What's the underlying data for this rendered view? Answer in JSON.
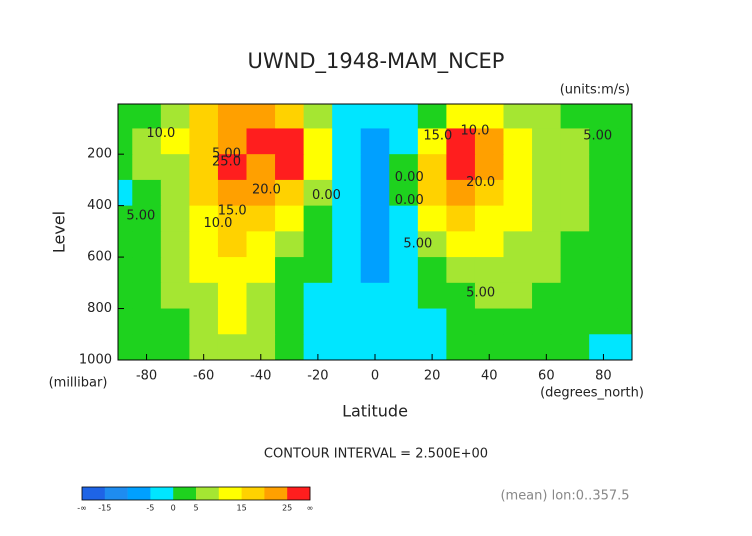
{
  "chart_data": {
    "type": "contour",
    "title": "UWND_1948-MAM_NCEP",
    "subtitle": "(units:m/s)",
    "x_label": "Latitude",
    "x_unit": "(degrees_north)",
    "y_label": "Level",
    "y_unit": "(millibar)",
    "note": "CONTOUR INTERVAL = 2.500E+00",
    "footer": "(mean) lon:0..357.5",
    "xlim": [
      -90,
      90
    ],
    "ylim": [
      1000,
      5
    ],
    "xticks": [
      -80,
      -60,
      -40,
      -20,
      0,
      20,
      40,
      60,
      80
    ],
    "yticks": [
      200,
      400,
      600,
      800,
      1000
    ],
    "x": [
      -90,
      -80,
      -70,
      -60,
      -50,
      -40,
      -30,
      -20,
      -10,
      0,
      10,
      20,
      30,
      40,
      50,
      60,
      70,
      80,
      90
    ],
    "levels": [
      50,
      150,
      250,
      350,
      450,
      550,
      650,
      750,
      850,
      950
    ],
    "z": [
      [
        3,
        4,
        8,
        15,
        22,
        22,
        18,
        8,
        -3,
        -5,
        -3,
        4,
        10,
        10,
        8,
        6,
        4,
        3,
        2
      ],
      [
        3,
        5,
        10,
        17,
        23,
        25,
        27,
        10,
        -3,
        -6,
        -2,
        12,
        27,
        20,
        12,
        8,
        5,
        3,
        2
      ],
      [
        2,
        5,
        9,
        16,
        26,
        24,
        26,
        12,
        -1,
        -6,
        0,
        17,
        26,
        20,
        14,
        9,
        6,
        3,
        2
      ],
      [
        -1,
        4,
        8,
        15,
        22,
        20,
        15,
        6,
        -1,
        -6,
        0,
        15,
        22,
        17,
        12,
        8,
        5,
        3,
        2
      ],
      [
        2,
        4,
        7,
        13,
        18,
        16,
        10,
        3,
        -2,
        -6,
        -1,
        11,
        16,
        14,
        10,
        7,
        5,
        3,
        2
      ],
      [
        2,
        4,
        6,
        11,
        15,
        12,
        6,
        1,
        -2,
        -7,
        -2,
        7,
        11,
        11,
        9,
        6,
        4,
        2,
        1
      ],
      [
        2,
        3,
        6,
        10,
        14,
        10,
        4,
        0,
        -2,
        -6,
        -3,
        3,
        7,
        8,
        7,
        5,
        3,
        2,
        1
      ],
      [
        2,
        3,
        5,
        9,
        12,
        8,
        3,
        -1,
        -3,
        -4,
        -2,
        0,
        4,
        5,
        5,
        4,
        3,
        1,
        1
      ],
      [
        1,
        2,
        4,
        8,
        11,
        7,
        2,
        -1,
        -3,
        -3,
        -2,
        -1,
        2,
        3,
        3,
        3,
        2,
        1,
        0
      ],
      [
        1,
        1,
        3,
        6,
        9,
        6,
        2,
        -2,
        -5,
        -3,
        -2,
        -2,
        1,
        1,
        1,
        1,
        1,
        -1,
        -1
      ]
    ],
    "colorbar": {
      "bounds": [
        -15,
        -10,
        -5,
        0,
        5,
        10,
        15,
        20,
        25
      ],
      "colors": [
        "#1e64e6",
        "#1e8cf0",
        "#00a0ff",
        "#00e6ff",
        "#1ed21e",
        "#a5e632",
        "#ffff00",
        "#ffd200",
        "#ffa000",
        "#ff1e1e"
      ],
      "ticks": [
        -15,
        -5,
        0,
        5,
        15,
        25
      ],
      "end_labels": [
        "-∞",
        "∞"
      ]
    },
    "annotations": [
      "10.0",
      "25.0",
      "5.00",
      "20.0",
      "15.0",
      "10.0",
      "5.00",
      "0.00",
      "0.00",
      "15.0",
      "10.0",
      "5.00",
      "20.0",
      "0.00",
      "5.00",
      "5.00"
    ]
  }
}
